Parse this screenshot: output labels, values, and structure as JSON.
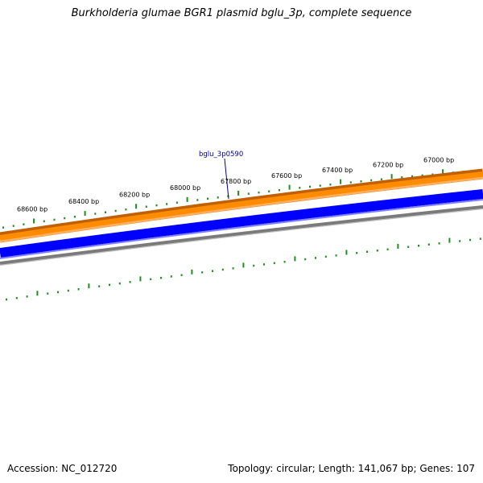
{
  "title": "Burkholderia glumae BGR1 plasmid bglu_3p, complete sequence",
  "footer": {
    "accession": "Accession: NC_012720",
    "summary": "Topology: circular; Length: 141,067 bp; Genes: 107"
  },
  "colors": {
    "forward_strand_outline": "#c06000",
    "forward_strand_fill": "#ff8c00",
    "forward_strand_light": "#ffb060",
    "reverse_strand_fill": "#0000ff",
    "reverse_strand_light": "#8080ff",
    "backbone": "#808080",
    "ticks": "#228b22",
    "gene_label": "#00008b"
  },
  "tick_labels": [
    "68600 bp",
    "68400 bp",
    "68200 bp",
    "68000 bp",
    "67800 bp",
    "67600 bp",
    "67400 bp",
    "67200 bp",
    "67000 bp"
  ],
  "gene_label": "bglu_3p0590"
}
